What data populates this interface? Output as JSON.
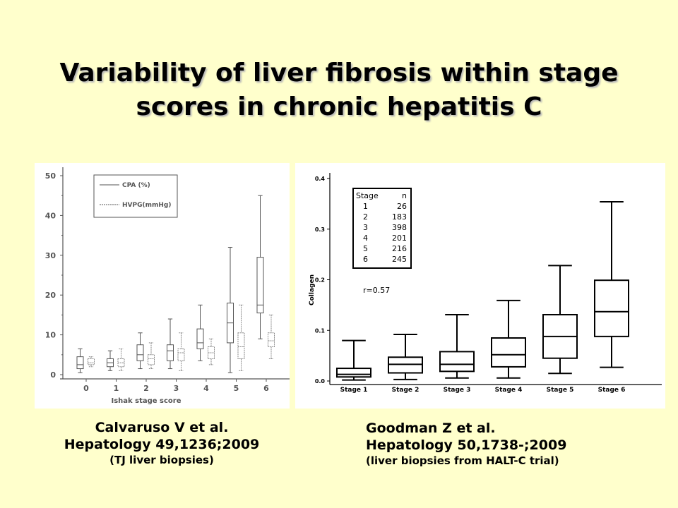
{
  "slide": {
    "title_line1": "Variability of liver fibrosis within stage",
    "title_line2": "scores in chronic hepatitis C"
  },
  "citations": {
    "left": {
      "line1": "Calvaruso V et al.",
      "line2": "Hepatology 49,1236;2009",
      "line3": "(TJ liver biopsies)"
    },
    "right": {
      "line1": "Goodman Z et al.",
      "line2": "Hepatology 50,1738-;2009",
      "line3": "(liver biopsies from HALT-C trial)"
    }
  },
  "colors": {
    "background": "#ffffcc",
    "panel": "#ffffff",
    "ink": "#000000",
    "left_ink": "#555555",
    "cpa_box": "#555555",
    "hvpg_box": "#888888"
  },
  "chart_data": [
    {
      "type": "box",
      "title": "",
      "xlabel": "Ishak stage score",
      "ylabel": "",
      "ylim": [
        0,
        50
      ],
      "yticks": [
        0,
        10,
        20,
        30,
        40,
        50
      ],
      "categories": [
        "0",
        "1",
        "2",
        "3",
        "4",
        "5",
        "6"
      ],
      "legend": {
        "placement": "top-left",
        "entries": [
          "CPA (%)",
          "HVPG(mmHg)"
        ]
      },
      "series": [
        {
          "name": "CPA (%)",
          "style": "solid",
          "boxes": [
            {
              "min": 0.5,
              "q1": 1.5,
              "median": 2.5,
              "q3": 4.5,
              "max": 6.5
            },
            {
              "min": 1,
              "q1": 2,
              "median": 3,
              "q3": 4,
              "max": 6
            },
            {
              "min": 1.5,
              "q1": 3.5,
              "median": 5,
              "q3": 7.5,
              "max": 10.5
            },
            {
              "min": 1.5,
              "q1": 3.5,
              "median": 6,
              "q3": 7.5,
              "max": 14
            },
            {
              "min": 3.5,
              "q1": 6.5,
              "median": 8,
              "q3": 11.5,
              "max": 17.5
            },
            {
              "min": 0.5,
              "q1": 8,
              "median": 13,
              "q3": 18,
              "max": 32
            },
            {
              "min": 9,
              "q1": 15.5,
              "median": 17.5,
              "q3": 29.5,
              "max": 45
            }
          ]
        },
        {
          "name": "HVPG(mmHg)",
          "style": "dotted",
          "boxes": [
            {
              "min": 2,
              "q1": 2.5,
              "median": 3,
              "q3": 4,
              "max": 4.5
            },
            {
              "min": 1,
              "q1": 2,
              "median": 3,
              "q3": 4,
              "max": 6.5
            },
            {
              "min": 1.5,
              "q1": 2.5,
              "median": 4,
              "q3": 5,
              "max": 8
            },
            {
              "min": 1,
              "q1": 3.5,
              "median": 5.5,
              "q3": 6.5,
              "max": 10.5
            },
            {
              "min": 2.5,
              "q1": 4,
              "median": 5.5,
              "q3": 7,
              "max": 9
            },
            {
              "min": 1,
              "q1": 4,
              "median": 7,
              "q3": 10.5,
              "max": 17.5
            },
            {
              "min": 4,
              "q1": 7,
              "median": 8.5,
              "q3": 10.5,
              "max": 15
            }
          ]
        }
      ]
    },
    {
      "type": "box",
      "title": "",
      "xlabel": "",
      "ylabel": "Collagen",
      "ylim": [
        0,
        0.4
      ],
      "yticks": [
        "0.0",
        "0.1",
        "0.2",
        "0.3",
        "0.4"
      ],
      "categories": [
        "Stage 1",
        "Stage 2",
        "Stage 3",
        "Stage 4",
        "Stage 5",
        "Stage 6"
      ],
      "annotation": "r=0.57",
      "table": {
        "headers": [
          "Stage",
          "n"
        ],
        "rows": [
          [
            "1",
            "26"
          ],
          [
            "2",
            "183"
          ],
          [
            "3",
            "398"
          ],
          [
            "4",
            "201"
          ],
          [
            "5",
            "216"
          ],
          [
            "6",
            "245"
          ]
        ]
      },
      "boxes": [
        {
          "min": 0.002,
          "q1": 0.008,
          "median": 0.013,
          "q3": 0.025,
          "max": 0.08
        },
        {
          "min": 0.003,
          "q1": 0.016,
          "median": 0.033,
          "q3": 0.047,
          "max": 0.092
        },
        {
          "min": 0.006,
          "q1": 0.019,
          "median": 0.033,
          "q3": 0.058,
          "max": 0.131
        },
        {
          "min": 0.006,
          "q1": 0.028,
          "median": 0.052,
          "q3": 0.085,
          "max": 0.159
        },
        {
          "min": 0.015,
          "q1": 0.045,
          "median": 0.088,
          "q3": 0.131,
          "max": 0.228
        },
        {
          "min": 0.027,
          "q1": 0.088,
          "median": 0.137,
          "q3": 0.199,
          "max": 0.354
        }
      ]
    }
  ]
}
